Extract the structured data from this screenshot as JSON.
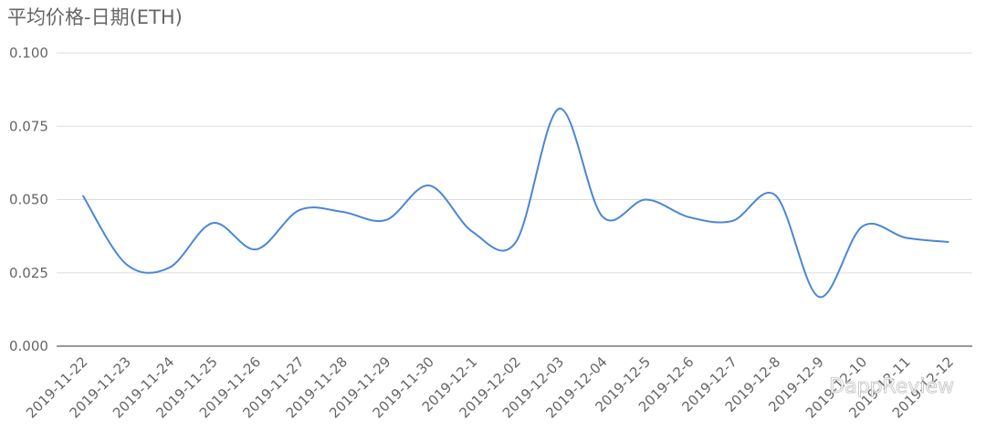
{
  "chart_data": {
    "type": "line",
    "title": "平均价格-日期(ETH)",
    "categories": [
      "2019-11-22",
      "2019-11-23",
      "2019-11-24",
      "2019-11-25",
      "2019-11-26",
      "2019-11-27",
      "2019-11-28",
      "2019-11-29",
      "2019-11-30",
      "2019-12-1",
      "2019-12-02",
      "2019-12-03",
      "2019-12-04",
      "2019-12-5",
      "2019-12-6",
      "2019-12-7",
      "2019-12-8",
      "2019-12-9",
      "2019-12-10",
      "2019-12-11",
      "2019-12-12"
    ],
    "series": [
      {
        "color": "#4a86d8",
        "values": [
          0.0514,
          0.028,
          0.0268,
          0.042,
          0.033,
          0.0464,
          0.0458,
          0.043,
          0.0548,
          0.039,
          0.0355,
          0.081,
          0.0442,
          0.05,
          0.044,
          0.0427,
          0.0514,
          0.0168,
          0.0408,
          0.037,
          0.0355
        ]
      }
    ],
    "ylim": [
      0,
      0.1
    ],
    "yticks": [
      {
        "value": 0,
        "label": "0.000"
      },
      {
        "value": 0.025,
        "label": "0.025"
      },
      {
        "value": 0.05,
        "label": "0.050"
      },
      {
        "value": 0.075,
        "label": "0.075"
      },
      {
        "value": 0.1,
        "label": "0.100"
      }
    ],
    "grid": true,
    "watermark": "DappReview"
  }
}
